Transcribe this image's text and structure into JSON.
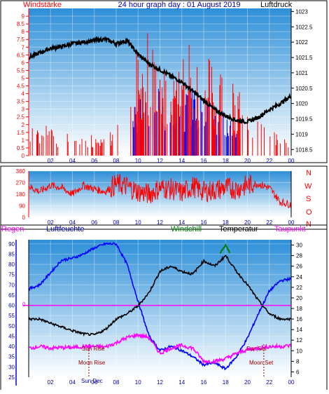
{
  "panel_top": {
    "title": "24 hour graph day : 01 August 2019",
    "left_label": "Windstärke",
    "right_label": "Luftdruck"
  },
  "panel_mid": {
    "direction_letters": [
      "N",
      "W",
      "S",
      "O",
      "N"
    ]
  },
  "panel_bottom": {
    "labels": {
      "regen": "Regen",
      "luftfeuchte": "Luftfeuchte",
      "windchill": "Windchill",
      "temperatur": "Temperatur",
      "taupunkt": "Taupunkt"
    },
    "rain_zero": "0",
    "annotations": {
      "sun_rise": "Sun Rise",
      "moon_rise": "Moon Rise",
      "sun_set": "Sun Set",
      "moon_set": "Moon Set",
      "sun_dec": "Sun Dec"
    }
  },
  "colors": {
    "wind_speed": "#ff0000",
    "wind_gust_zone": "#0000ff",
    "pressure": "#000000",
    "humidity": "#0000ff",
    "temperature": "#000000",
    "dewpoint": "#ff00ff",
    "windchill": "#008000",
    "rain": "#ff00ff",
    "background_top": "#2d8fd8",
    "background_bottom": "#ffffff"
  },
  "chart_data": [
    {
      "type": "line",
      "x_ticks": [
        "02",
        "04",
        "06",
        "08",
        "10",
        "12",
        "14",
        "16",
        "18",
        "20",
        "22",
        "00"
      ],
      "x_range_hours": [
        0,
        24
      ],
      "left_axis": {
        "label": "Windstärke",
        "ticks": [
          "0",
          "0.5",
          "1",
          "1.5",
          "2",
          "2.5",
          "3",
          "3.5",
          "4",
          "4.5",
          "5",
          "5.5",
          "6",
          "6.5",
          "7",
          "7.5",
          "8",
          "8.5",
          "9"
        ],
        "range": [
          0,
          9.5
        ]
      },
      "right_axis": {
        "label": "Luftdruck",
        "ticks": [
          "1018.5",
          "1019",
          "1019.5",
          "1020",
          "1020.5",
          "1021",
          "1021.5",
          "1022",
          "1022.5",
          "1023"
        ],
        "range": [
          1018.3,
          1023.1
        ]
      },
      "series": [
        {
          "name": "Luftdruck",
          "axis": "right",
          "points": [
            [
              0,
              1021.5
            ],
            [
              1,
              1021.65
            ],
            [
              2,
              1021.8
            ],
            [
              3,
              1021.85
            ],
            [
              4,
              1021.95
            ],
            [
              5,
              1022.0
            ],
            [
              6,
              1022.05
            ],
            [
              7,
              1022.1
            ],
            [
              8,
              1021.95
            ],
            [
              9,
              1022.05
            ],
            [
              10,
              1021.6
            ],
            [
              11,
              1021.3
            ],
            [
              12,
              1021.1
            ],
            [
              13,
              1020.9
            ],
            [
              14,
              1020.7
            ],
            [
              15,
              1020.4
            ],
            [
              16,
              1020.1
            ],
            [
              17,
              1019.8
            ],
            [
              18,
              1019.6
            ],
            [
              19,
              1019.45
            ],
            [
              20,
              1019.4
            ],
            [
              21,
              1019.55
            ],
            [
              22,
              1019.8
            ],
            [
              23,
              1020.0
            ],
            [
              24,
              1020.25
            ]
          ]
        },
        {
          "name": "Windstärke",
          "axis": "left",
          "points": [
            [
              0,
              1.5
            ],
            [
              1,
              1.8
            ],
            [
              2,
              1.5
            ],
            [
              3,
              1.2
            ],
            [
              4,
              1.6
            ],
            [
              5,
              0.8
            ],
            [
              6,
              1.4
            ],
            [
              7,
              1.0
            ],
            [
              8,
              1.8
            ],
            [
              9,
              1.6
            ],
            [
              10,
              4.8
            ],
            [
              11,
              5.2
            ],
            [
              12,
              6.0
            ],
            [
              13,
              4.6
            ],
            [
              14,
              4.8
            ],
            [
              15,
              5.5
            ],
            [
              16,
              5.0
            ],
            [
              17,
              4.0
            ],
            [
              18,
              3.8
            ],
            [
              19,
              2.8
            ],
            [
              20,
              2.5
            ],
            [
              21,
              2.0
            ],
            [
              22,
              1.6
            ],
            [
              23,
              1.2
            ],
            [
              24,
              0.8
            ]
          ]
        }
      ]
    },
    {
      "type": "scatter",
      "x_ticks": [
        "02",
        "04",
        "06",
        "08",
        "10",
        "12",
        "14",
        "16",
        "18",
        "20",
        "22",
        "00"
      ],
      "x_range_hours": [
        0,
        24
      ],
      "y_axis": {
        "ticks": [
          "0",
          "90",
          "180",
          "270",
          "360"
        ],
        "range": [
          0,
          360
        ]
      },
      "series": [
        {
          "name": "Windrichtung",
          "points": [
            [
              0,
              240
            ],
            [
              1,
              200
            ],
            [
              2,
              250
            ],
            [
              3,
              230
            ],
            [
              4,
              180
            ],
            [
              5,
              250
            ],
            [
              6,
              220
            ],
            [
              7,
              200
            ],
            [
              8,
              260
            ],
            [
              9,
              240
            ],
            [
              10,
              200
            ],
            [
              11,
              180
            ],
            [
              12,
              230
            ],
            [
              13,
              220
            ],
            [
              14,
              190
            ],
            [
              15,
              240
            ],
            [
              16,
              200
            ],
            [
              17,
              210
            ],
            [
              18,
              230
            ],
            [
              19,
              220
            ],
            [
              20,
              250
            ],
            [
              21,
              260
            ],
            [
              22,
              230
            ],
            [
              23,
              120
            ],
            [
              24,
              100
            ]
          ]
        }
      ]
    },
    {
      "type": "line",
      "x_ticks": [
        "02",
        "04",
        "06",
        "08",
        "10",
        "12",
        "14",
        "16",
        "18",
        "20",
        "22",
        "00"
      ],
      "x_range_hours": [
        0,
        24
      ],
      "left_axis": {
        "label": "Luftfeuchte",
        "ticks": [
          "25",
          "30",
          "35",
          "40",
          "45",
          "50",
          "55",
          "60",
          "65",
          "70",
          "75",
          "80",
          "85",
          "90"
        ],
        "range": [
          25,
          92
        ]
      },
      "right_axis": {
        "label": "Temperatur",
        "ticks": [
          "6",
          "8",
          "10",
          "12",
          "14",
          "16",
          "18",
          "20",
          "22",
          "24",
          "26",
          "28",
          "30"
        ],
        "range": [
          5,
          31
        ]
      },
      "series": [
        {
          "name": "Temperatur",
          "axis": "right",
          "points": [
            [
              0,
              16.0
            ],
            [
              1,
              16.0
            ],
            [
              2,
              15.2
            ],
            [
              3,
              14.5
            ],
            [
              4,
              13.8
            ],
            [
              5,
              13.2
            ],
            [
              6,
              13.0
            ],
            [
              7,
              14.0
            ],
            [
              8,
              16.0
            ],
            [
              9,
              17.0
            ],
            [
              10,
              18.5
            ],
            [
              11,
              21.0
            ],
            [
              12,
              25.0
            ],
            [
              13,
              26.0
            ],
            [
              14,
              25.0
            ],
            [
              15,
              24.5
            ],
            [
              16,
              27.0
            ],
            [
              17,
              26.0
            ],
            [
              18,
              28.0
            ],
            [
              19,
              25.0
            ],
            [
              20,
              22.5
            ],
            [
              21,
              19.5
            ],
            [
              22,
              17.0
            ],
            [
              23,
              16.0
            ],
            [
              24,
              16.0
            ]
          ]
        },
        {
          "name": "Luftfeuchte",
          "axis": "left",
          "points": [
            [
              0,
              68
            ],
            [
              1,
              70
            ],
            [
              2,
              76
            ],
            [
              3,
              82
            ],
            [
              4,
              83
            ],
            [
              5,
              85
            ],
            [
              6,
              88
            ],
            [
              7,
              90
            ],
            [
              8,
              90
            ],
            [
              9,
              80
            ],
            [
              10,
              62
            ],
            [
              11,
              45
            ],
            [
              12,
              38
            ],
            [
              13,
              40
            ],
            [
              14,
              38
            ],
            [
              15,
              35
            ],
            [
              16,
              31
            ],
            [
              17,
              32
            ],
            [
              18,
              29
            ],
            [
              19,
              35
            ],
            [
              20,
              44
            ],
            [
              21,
              56
            ],
            [
              22,
              67
            ],
            [
              23,
              72
            ],
            [
              24,
              73
            ]
          ]
        },
        {
          "name": "Taupunkt",
          "axis": "right",
          "points": [
            [
              0,
              10.5
            ],
            [
              1,
              10.8
            ],
            [
              2,
              10.5
            ],
            [
              3,
              10.6
            ],
            [
              4,
              10.6
            ],
            [
              5,
              10.8
            ],
            [
              6,
              10.8
            ],
            [
              7,
              10.7
            ],
            [
              8,
              11.5
            ],
            [
              9,
              12.5
            ],
            [
              10,
              13.0
            ],
            [
              11,
              12.5
            ],
            [
              12,
              9.5
            ],
            [
              13,
              10.5
            ],
            [
              14,
              11.0
            ],
            [
              15,
              10.5
            ],
            [
              16,
              8.0
            ],
            [
              17,
              8.0
            ],
            [
              18,
              8.5
            ],
            [
              19,
              9.5
            ],
            [
              20,
              10.2
            ],
            [
              21,
              10.5
            ],
            [
              22,
              10.8
            ],
            [
              23,
              10.8
            ],
            [
              24,
              11.0
            ]
          ]
        },
        {
          "name": "Windchill",
          "axis": "right",
          "points": [
            [
              17.5,
              28.5
            ],
            [
              18,
              30.0
            ],
            [
              18.4,
              28.5
            ]
          ]
        },
        {
          "name": "Regen",
          "axis": "left",
          "points": [
            [
              0,
              60
            ],
            [
              24,
              60
            ]
          ]
        }
      ]
    }
  ]
}
